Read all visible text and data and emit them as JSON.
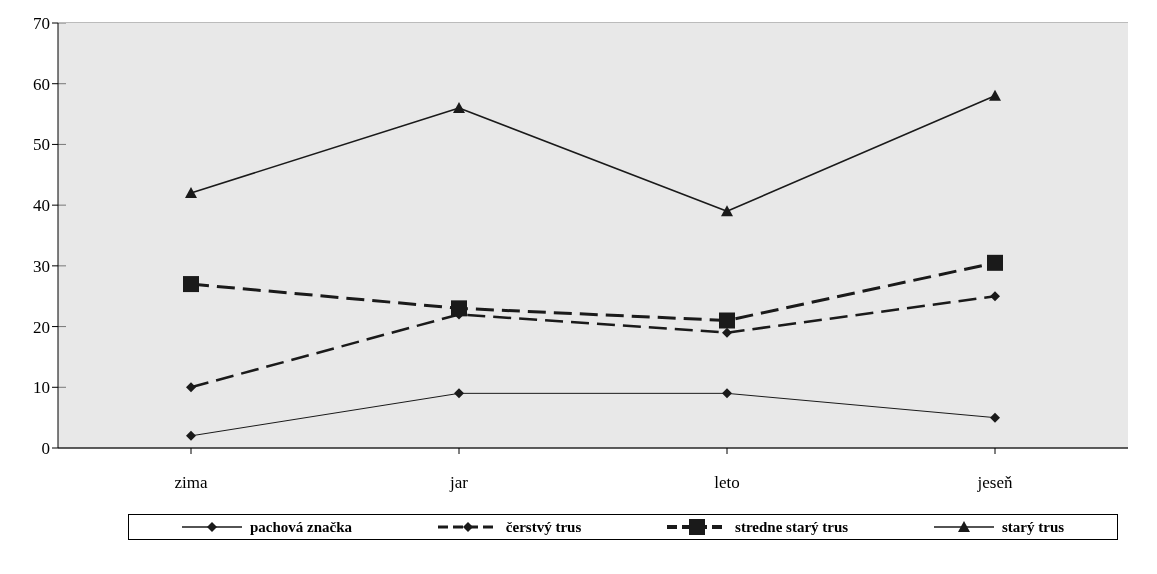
{
  "chart_data": {
    "type": "line",
    "categories": [
      "zima",
      "jar",
      "leto",
      "jeseň"
    ],
    "series": [
      {
        "name": "pachová značka",
        "color": "#1a1a1a",
        "values": [
          2,
          9,
          9,
          5
        ],
        "marker": "diamond",
        "line_style": "solid"
      },
      {
        "name": "čerstvý trus",
        "color": "#1a1a1a",
        "values": [
          10,
          22,
          19,
          25
        ],
        "marker": "diamond",
        "line_style": "dashed"
      },
      {
        "name": "stredne starý trus",
        "color": "#1a1a1a",
        "values": [
          27,
          23,
          21,
          30.5
        ],
        "marker": "square",
        "line_style": "dashed"
      },
      {
        "name": "starý trus",
        "color": "#1a1a1a",
        "values": [
          42,
          56,
          39,
          58
        ],
        "marker": "triangle",
        "line_style": "solid"
      }
    ],
    "ylim": [
      0,
      70
    ],
    "yticks": [
      0,
      10,
      20,
      30,
      40,
      50,
      60,
      70
    ],
    "grid": "y",
    "legend": "bottom"
  }
}
